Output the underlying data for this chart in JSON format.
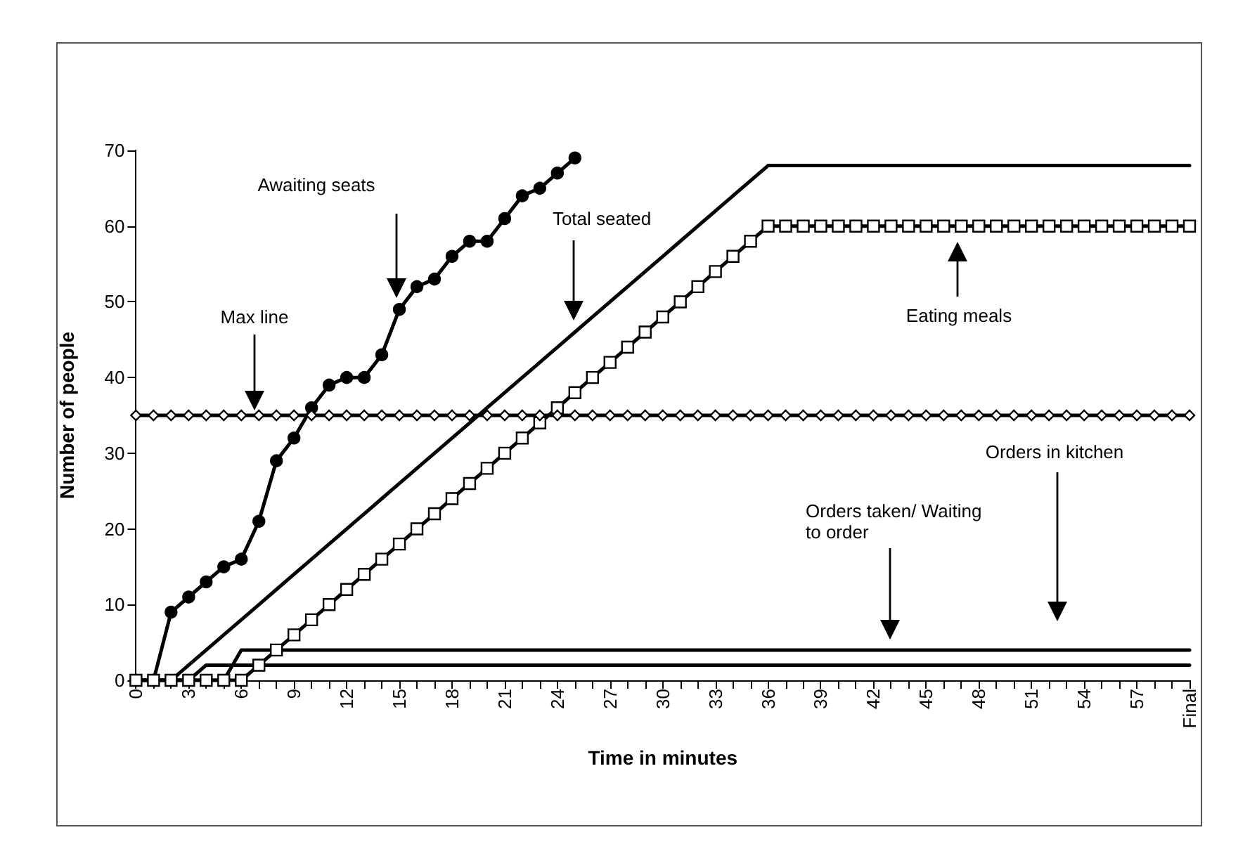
{
  "chart_data": {
    "type": "line",
    "xlabel": "Time in minutes",
    "ylabel": "Number of people",
    "categories": [
      "0",
      null,
      null,
      "3",
      null,
      null,
      "6",
      null,
      null,
      "9",
      null,
      null,
      "12",
      null,
      null,
      "15",
      null,
      null,
      "18",
      null,
      null,
      "21",
      null,
      null,
      "24",
      null,
      null,
      "27",
      null,
      null,
      "30",
      null,
      null,
      "33",
      null,
      null,
      "36",
      null,
      null,
      "39",
      null,
      null,
      "42",
      null,
      null,
      "45",
      null,
      null,
      "48",
      null,
      null,
      "51",
      null,
      null,
      "54",
      null,
      null,
      "57",
      null,
      null,
      "Final"
    ],
    "annotations": [
      "Awaiting seats",
      "Total seated",
      "Eating meals",
      "Max line",
      "Orders taken/ Waiting to order",
      "Orders in kitchen"
    ],
    "ylim": [
      0,
      70
    ],
    "yticks": [
      0,
      10,
      20,
      30,
      40,
      50,
      60,
      70
    ],
    "grid": false,
    "series": [
      {
        "color": "#000000",
        "marker": "circle",
        "values": [
          0,
          0,
          9,
          11,
          13,
          15,
          16,
          21,
          29,
          32,
          36,
          39,
          40,
          40,
          43,
          49,
          52,
          53,
          56,
          58,
          58,
          61,
          64,
          65,
          67,
          69,
          null,
          null,
          null,
          null,
          null,
          null,
          null,
          null,
          null,
          null,
          null,
          null,
          null,
          null,
          null,
          null,
          null,
          null,
          null,
          null,
          null,
          null,
          null,
          null,
          null,
          null,
          null,
          null,
          null,
          null,
          null,
          null,
          null,
          null,
          null
        ]
      },
      {
        "color": "#000000",
        "marker": "none",
        "values": [
          0,
          0,
          0,
          2,
          4,
          6,
          8,
          10,
          12,
          14,
          16,
          18,
          20,
          22,
          24,
          26,
          28,
          30,
          32,
          34,
          36,
          38,
          40,
          42,
          44,
          46,
          48,
          50,
          52,
          54,
          56,
          58,
          60,
          62,
          64,
          66,
          68,
          68,
          68,
          68,
          68,
          68,
          68,
          68,
          68,
          68,
          68,
          68,
          68,
          68,
          68,
          68,
          68,
          68,
          68,
          68,
          68,
          68,
          68,
          68,
          68
        ]
      },
      {
        "color": "#000000",
        "marker": "square",
        "values": [
          0,
          0,
          0,
          0,
          0,
          0,
          0,
          2,
          4,
          6,
          8,
          10,
          12,
          14,
          16,
          18,
          20,
          22,
          24,
          26,
          28,
          30,
          32,
          34,
          36,
          38,
          40,
          42,
          44,
          46,
          48,
          50,
          52,
          54,
          56,
          58,
          60,
          60,
          60,
          60,
          60,
          60,
          60,
          60,
          60,
          60,
          60,
          60,
          60,
          60,
          60,
          60,
          60,
          60,
          60,
          60,
          60,
          60,
          60,
          60,
          60
        ]
      },
      {
        "color": "#000000",
        "marker": "diamond",
        "values": [
          35,
          35,
          35,
          35,
          35,
          35,
          35,
          35,
          35,
          35,
          35,
          35,
          35,
          35,
          35,
          35,
          35,
          35,
          35,
          35,
          35,
          35,
          35,
          35,
          35,
          35,
          35,
          35,
          35,
          35,
          35,
          35,
          35,
          35,
          35,
          35,
          35,
          35,
          35,
          35,
          35,
          35,
          35,
          35,
          35,
          35,
          35,
          35,
          35,
          35,
          35,
          35,
          35,
          35,
          35,
          35,
          35,
          35,
          35,
          35,
          35
        ]
      },
      {
        "color": "#000000",
        "marker": "none",
        "values": [
          0,
          0,
          0,
          0,
          0,
          0,
          4,
          4,
          4,
          4,
          4,
          4,
          4,
          4,
          4,
          4,
          4,
          4,
          4,
          4,
          4,
          4,
          4,
          4,
          4,
          4,
          4,
          4,
          4,
          4,
          4,
          4,
          4,
          4,
          4,
          4,
          4,
          4,
          4,
          4,
          4,
          4,
          4,
          4,
          4,
          4,
          4,
          4,
          4,
          4,
          4,
          4,
          4,
          4,
          4,
          4,
          4,
          4,
          4,
          4,
          4
        ]
      },
      {
        "color": "#000000",
        "marker": "none",
        "values": [
          0,
          0,
          0,
          0,
          2,
          2,
          2,
          2,
          2,
          2,
          2,
          2,
          2,
          2,
          2,
          2,
          2,
          2,
          2,
          2,
          2,
          2,
          2,
          2,
          2,
          2,
          2,
          2,
          2,
          2,
          2,
          2,
          2,
          2,
          2,
          2,
          2,
          2,
          2,
          2,
          2,
          2,
          2,
          2,
          2,
          2,
          2,
          2,
          2,
          2,
          2,
          2,
          2,
          2,
          2,
          2,
          2,
          2,
          2,
          2,
          2
        ]
      }
    ]
  }
}
